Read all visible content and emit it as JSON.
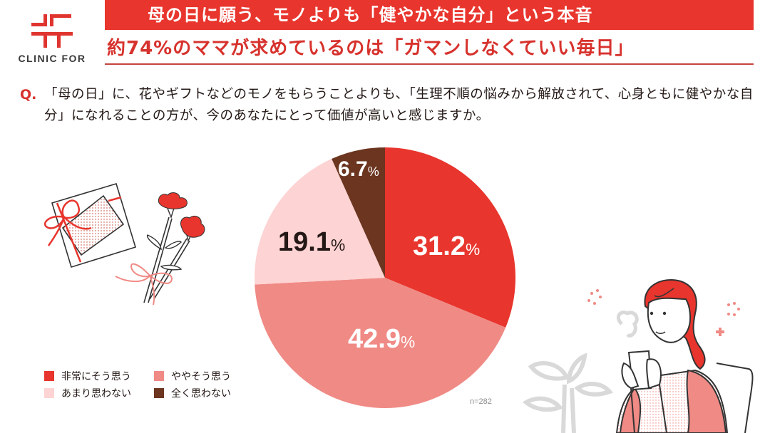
{
  "brand": {
    "logo_text": "CLINIC FOR",
    "logo_icon": "cross-logo-icon",
    "accent_color": "#e8352d"
  },
  "header": {
    "title": "母の日に願う、モノよりも「健やかな自分」という本音",
    "subtitle": "約74%のママが求めているのは「ガマンしなくていい毎日」"
  },
  "question": {
    "mark": "Q.",
    "text": "「母の日」に、花やギフトなどのモノをもらうことよりも、「生理不順の悩みから解放されて、心身ともに健やかな自分」になれることの方が、今のあなたにとって価値が高いと感じますか。"
  },
  "chart_data": {
    "type": "pie",
    "title": "",
    "categories": [
      "非常にそう思う",
      "ややそう思う",
      "あまり思わない",
      "全く思わない"
    ],
    "values": [
      31.2,
      42.9,
      19.1,
      6.7
    ],
    "unit": "%",
    "colors": [
      "#e8352d",
      "#f08a85",
      "#fdd3d3",
      "#6b3520"
    ],
    "label_colors": [
      "#ffffff",
      "#ffffff",
      "#231815",
      "#ffffff"
    ],
    "start_angle_deg": 0,
    "direction": "clockwise",
    "sample_size": "n=282",
    "legend_position": "bottom-left"
  },
  "legend": {
    "items": [
      {
        "label": "非常にそう思う",
        "color": "#e8352d"
      },
      {
        "label": "ややそう思う",
        "color": "#f08a85"
      },
      {
        "label": "あまり思わない",
        "color": "#fdd3d3"
      },
      {
        "label": "全く思わない",
        "color": "#6b3520"
      }
    ]
  },
  "labels": {
    "slice_0": "31.2",
    "slice_1": "42.9",
    "slice_2": "19.1",
    "slice_3": "6.7",
    "pct": "%"
  },
  "footnote": {
    "sample": "n=282"
  },
  "illustrations": {
    "left": "gift-and-carnations-illustration",
    "right": "woman-drinking-tea-illustration"
  }
}
